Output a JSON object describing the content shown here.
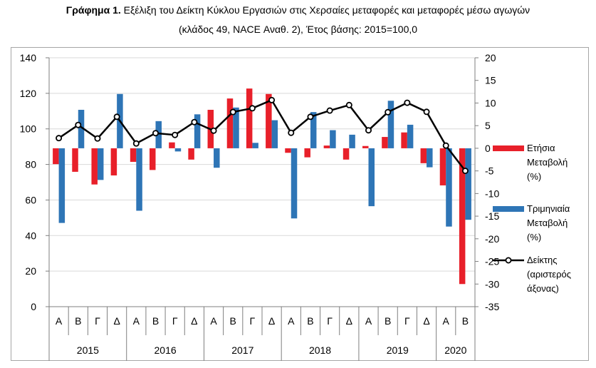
{
  "title": {
    "prefix": "Γράφημα 1.",
    "line1": " Εξέλιξη του Δείκτη Κύκλου Εργασιών στις Χερσαίες μεταφορές και μεταφορές μέσω αγωγών",
    "line2": "(κλάδος 49, NACE Αναθ. 2), Έτος βάσης: 2015=100,0"
  },
  "chart_data": {
    "type": "bar+line",
    "title": "Γράφημα 1. Εξέλιξη του Δείκτη Κύκλου Εργασιών στις Χερσαίες μεταφορές και μεταφορές μέσω αγωγών (κλάδος 49, NACE Αναθ. 2), Έτος βάσης: 2015=100,0",
    "categories": [
      "Α",
      "Β",
      "Γ",
      "Δ",
      "Α",
      "Β",
      "Γ",
      "Δ",
      "Α",
      "Β",
      "Γ",
      "Δ",
      "Α",
      "Β",
      "Γ",
      "Δ",
      "Α",
      "Β",
      "Γ",
      "Δ",
      "Α",
      "Β"
    ],
    "years": [
      {
        "label": "2015",
        "span": 4
      },
      {
        "label": "2016",
        "span": 4
      },
      {
        "label": "2017",
        "span": 4
      },
      {
        "label": "2018",
        "span": 4
      },
      {
        "label": "2019",
        "span": 4
      },
      {
        "label": "2020",
        "span": 2
      }
    ],
    "left_axis": {
      "min": 0,
      "max": 140,
      "ticks": [
        0,
        20,
        40,
        60,
        80,
        100,
        120,
        140
      ]
    },
    "right_axis": {
      "min": -35,
      "max": 20,
      "ticks": [
        -35,
        -30,
        -25,
        -20,
        -15,
        -10,
        -5,
        0,
        5,
        10,
        15,
        20
      ]
    },
    "series": [
      {
        "name": "Ετήσια Μεταβολή (%)",
        "axis": "right",
        "kind": "bar",
        "color": "#e8202a",
        "values": [
          -3.5,
          -5.2,
          -8.0,
          -6.0,
          -3.0,
          -4.8,
          1.3,
          -2.5,
          8.5,
          11.0,
          13.2,
          12.0,
          -1.0,
          -2.0,
          0.6,
          -2.5,
          0.5,
          2.5,
          3.5,
          -3.3,
          -8.2,
          -30.0
        ]
      },
      {
        "name": "Τριμηνιαία Μεταβολή (%)",
        "axis": "right",
        "kind": "bar",
        "color": "#2e75b6",
        "values": [
          -16.5,
          8.5,
          -7.0,
          12.0,
          -13.8,
          6.0,
          -0.7,
          7.5,
          -4.3,
          9.0,
          1.2,
          6.2,
          -15.5,
          8.0,
          4.0,
          3.0,
          -12.8,
          10.5,
          5.2,
          -4.2,
          -17.3,
          -15.8
        ]
      },
      {
        "name": "Δείκτης (αριστερός άξονας)",
        "axis": "left",
        "kind": "line",
        "color": "#000000",
        "values": [
          94.8,
          102.2,
          94.6,
          106.8,
          91.8,
          97.6,
          96.6,
          103.8,
          99.0,
          109.5,
          111.6,
          116.2,
          97.8,
          106.8,
          110.3,
          113.4,
          99.2,
          109.4,
          114.7,
          109.6,
          90.6,
          76.4
        ]
      }
    ],
    "legend_position": "right",
    "grid": true
  },
  "legend": [
    {
      "lines": [
        "Ετήσια",
        "Μεταβολή",
        "(%)"
      ],
      "swatch": "bar",
      "color": "#e8202a"
    },
    {
      "lines": [
        "Τριμηνιαία",
        "Μεταβολή",
        "(%)"
      ],
      "swatch": "bar",
      "color": "#2e75b6"
    },
    {
      "lines": [
        "Δείκτης",
        "(αριστερός",
        "άξονας)"
      ],
      "swatch": "line",
      "color": "#000000"
    }
  ]
}
